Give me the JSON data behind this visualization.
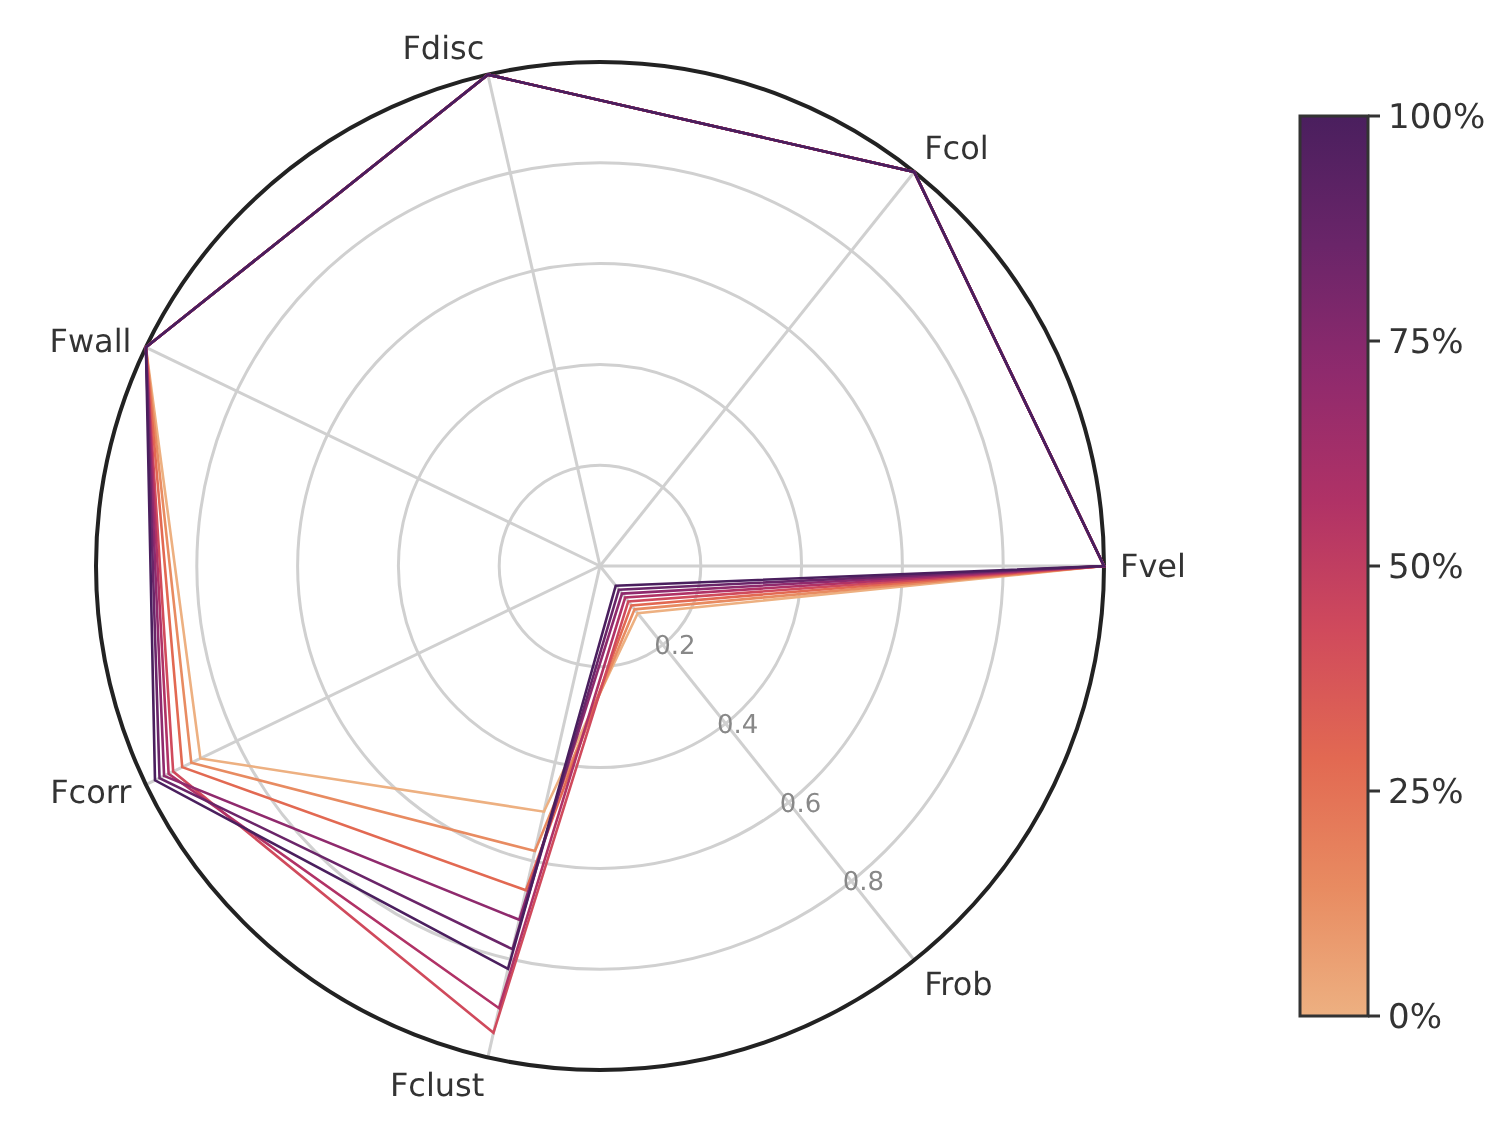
{
  "chart_data": {
    "type": "radar",
    "categories": [
      "Fdisc",
      "Fcol",
      "Fvel",
      "Frob",
      "Fclust",
      "Fcorr",
      "Fwall"
    ],
    "ylim": [
      0,
      1
    ],
    "yticks": [
      0.2,
      0.4,
      0.6,
      0.8
    ],
    "grid": true,
    "annotations": [
      "0%",
      "25%",
      "50%",
      "75%",
      "100%"
    ],
    "series": [
      {
        "color": "#edb081",
        "values": [
          1,
          1,
          1,
          0.12,
          0.5,
          0.88,
          1
        ]
      },
      {
        "color": "#e88b61",
        "values": [
          1,
          1,
          1,
          0.11,
          0.58,
          0.9,
          1
        ]
      },
      {
        "color": "#e26952",
        "values": [
          1,
          1,
          1,
          0.1,
          0.66,
          0.92,
          1
        ]
      },
      {
        "color": "#d04a5c",
        "values": [
          1,
          1,
          1,
          0.09,
          0.95,
          0.94,
          1
        ]
      },
      {
        "color": "#b03266",
        "values": [
          1,
          1,
          1,
          0.08,
          0.9,
          0.95,
          1
        ]
      },
      {
        "color": "#8f2a6d",
        "values": [
          1,
          1,
          1,
          0.07,
          0.72,
          0.96,
          1
        ]
      },
      {
        "color": "#6a2569",
        "values": [
          1,
          1,
          1,
          0.06,
          0.78,
          0.97,
          1
        ]
      },
      {
        "color": "#4a1f5e",
        "values": [
          1,
          1,
          1,
          0.05,
          0.82,
          0.98,
          1
        ]
      }
    ]
  }
}
